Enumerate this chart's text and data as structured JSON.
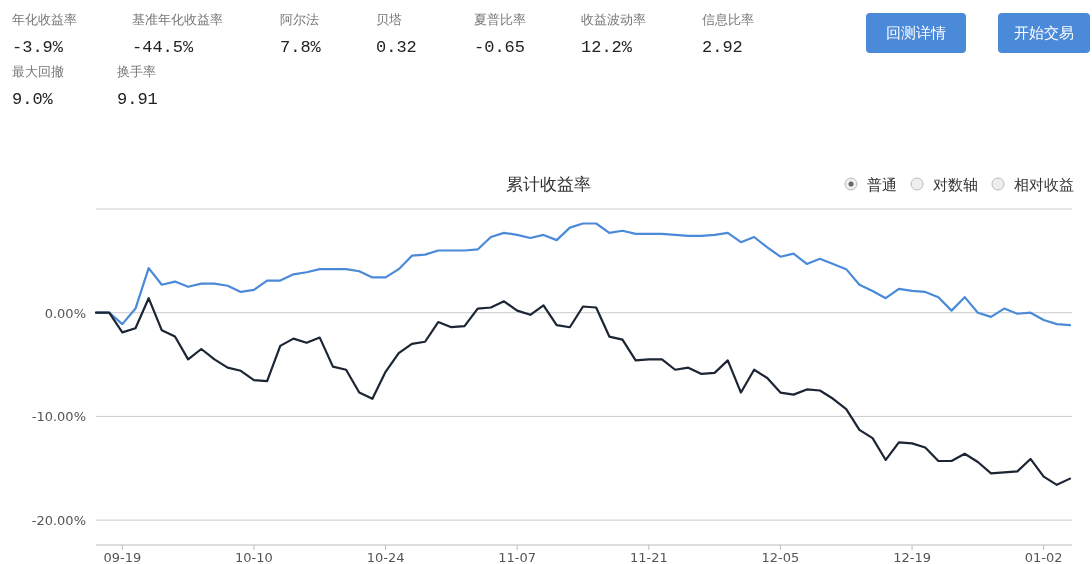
{
  "chart_data": [
    {
      "type": "other",
      "categories": [
        "年化收益率",
        "基准年化收益率",
        "阿尔法",
        "贝塔",
        "夏普比率",
        "收益波动率",
        "信息比率",
        "最大回撤",
        "换手率"
      ],
      "value_labels": [
        "-3.9%",
        "-44.5%",
        "7.8%",
        "0.32",
        "-0.65",
        "12.2%",
        "2.92",
        "9.0%",
        "9.91"
      ],
      "annotations": [
        "回测详情",
        "开始交易"
      ]
    },
    {
      "type": "line",
      "title": "累计收益率",
      "annotations": [
        "普通",
        "对数轴",
        "相对收益"
      ],
      "categories": [
        null,
        null,
        "09-19",
        null,
        null,
        null,
        null,
        null,
        null,
        null,
        null,
        null,
        "10-10",
        null,
        null,
        null,
        null,
        null,
        null,
        null,
        null,
        null,
        "10-24",
        null,
        null,
        null,
        null,
        null,
        null,
        null,
        null,
        null,
        "11-07",
        null,
        null,
        null,
        null,
        null,
        null,
        null,
        null,
        null,
        "11-21",
        null,
        null,
        null,
        null,
        null,
        null,
        null,
        null,
        null,
        "12-05",
        null,
        null,
        null,
        null,
        null,
        null,
        null,
        null,
        null,
        "12-19",
        null,
        null,
        null,
        null,
        null,
        null,
        null,
        null,
        null,
        "01-02",
        null,
        null
      ],
      "series": [
        {
          "color": "#4a8ad8",
          "values": [
            0,
            0,
            -1.1,
            0.4,
            4.3,
            2.7,
            3.0,
            2.5,
            2.8,
            2.8,
            2.6,
            2.0,
            2.2,
            3.1,
            3.1,
            3.7,
            3.9,
            4.2,
            4.2,
            4.2,
            4.0,
            3.4,
            3.4,
            4.2,
            5.5,
            5.6,
            6.0,
            6.0,
            6.0,
            6.1,
            7.3,
            7.7,
            7.5,
            7.2,
            7.5,
            7.0,
            8.2,
            8.6,
            8.6,
            7.7,
            7.9,
            7.6,
            7.6,
            7.6,
            7.5,
            7.4,
            7.4,
            7.5,
            7.7,
            6.8,
            7.3,
            6.3,
            5.4,
            5.7,
            4.7,
            5.2,
            4.7,
            4.2,
            2.7,
            2.1,
            1.4,
            2.3,
            2.1,
            2.0,
            1.5,
            0.2,
            1.5,
            0,
            -0.4,
            0.4,
            -0.1,
            0.0,
            -0.7,
            -1.1,
            -1.2
          ]
        },
        {
          "color": "#1c2533",
          "values": [
            0,
            0,
            -1.9,
            -1.5,
            1.4,
            -1.7,
            -2.3,
            -4.5,
            -3.5,
            -4.5,
            -5.3,
            -5.6,
            -6.5,
            -6.6,
            -3.2,
            -2.5,
            -2.9,
            -2.4,
            -5.2,
            -5.5,
            -7.7,
            -8.3,
            -5.7,
            -3.9,
            -3.0,
            -2.8,
            -0.9,
            -1.4,
            -1.3,
            0.4,
            0.5,
            1.1,
            0.2,
            -0.2,
            0.7,
            -1.2,
            -1.4,
            0.6,
            0.5,
            -2.3,
            -2.6,
            -4.6,
            -4.5,
            -4.5,
            -5.5,
            -5.3,
            -5.9,
            -5.8,
            -4.6,
            -7.7,
            -5.5,
            -6.3,
            -7.7,
            -7.9,
            -7.4,
            -7.5,
            -8.3,
            -9.3,
            -11.3,
            -12.1,
            -14.2,
            -12.5,
            -12.6,
            -13.0,
            -14.3,
            -14.3,
            -13.6,
            -14.4,
            -15.5,
            -15.4,
            -15.3,
            -14.1,
            -15.8,
            -16.6,
            -16.0
          ]
        }
      ],
      "ylim": [
        -22.4,
        10
      ],
      "yticks": [
        {
          "value": -20,
          "label": "-20.00%"
        },
        {
          "value": -10,
          "label": "-10.00%"
        },
        {
          "value": 0,
          "label": "0.00%"
        },
        {
          "value": 10,
          "label": null
        }
      ],
      "grid": "y",
      "marker": "none",
      "line_style": "solid"
    }
  ]
}
